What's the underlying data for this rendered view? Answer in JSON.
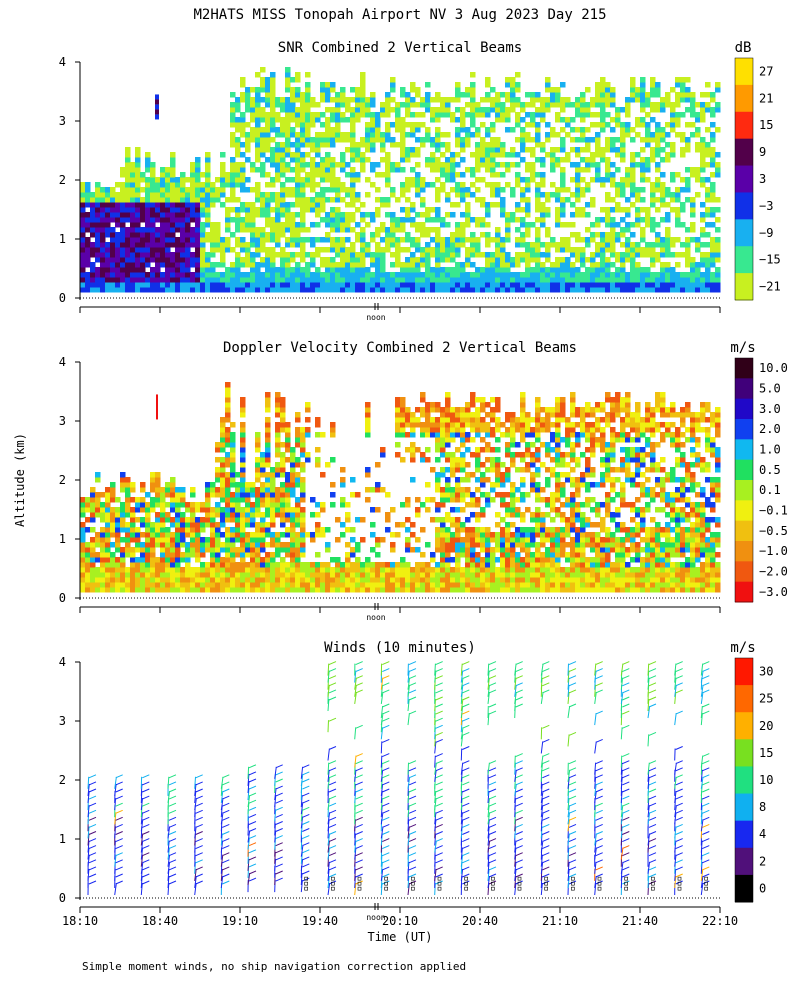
{
  "page_title": "M2HATS MISS Tonopah Airport NV   3 Aug 2023 Day 215",
  "footnote": "Simple moment winds, no ship navigation correction applied",
  "shared_axes": {
    "ylabel": "Altitude (km)",
    "xlabel": "Time (UT)",
    "noon_label": "noon",
    "ylim": [
      0,
      4
    ],
    "yticks": [
      "0",
      "1",
      "2",
      "3",
      "4"
    ],
    "xticks": [
      "18:10",
      "18:40",
      "19:10",
      "19:40",
      "20:10",
      "20:40",
      "21:10",
      "21:40",
      "22:10"
    ],
    "xlim_minutes": [
      1090,
      1330
    ],
    "noon_minutes": 1201
  },
  "chart_data": [
    {
      "type": "heatmap",
      "title": "SNR Combined 2 Vertical Beams",
      "units": "dB",
      "colorbar_labels": [
        "27",
        "21",
        "15",
        "9",
        "3",
        "−3",
        "−9",
        "−15",
        "−21"
      ],
      "colorbar_colors": [
        "#ffe000",
        "#ff9a00",
        "#ff2a10",
        "#52004a",
        "#5a00a8",
        "#1030e8",
        "#18b0f0",
        "#38e890",
        "#c8f020"
      ],
      "xlabel": "Time (UT)",
      "ylabel": "Altitude (km)",
      "ylim": [
        0,
        4
      ]
    },
    {
      "type": "heatmap",
      "title": "Doppler Velocity Combined 2 Vertical Beams",
      "units": "m/s",
      "colorbar_labels": [
        "10.0",
        "5.0",
        "3.0",
        "2.0",
        "1.0",
        "0.5",
        "0.1",
        "−0.1",
        "−0.5",
        "−1.0",
        "−2.0",
        "−3.0"
      ],
      "colorbar_colors": [
        "#300018",
        "#40007a",
        "#2008c8",
        "#1040f0",
        "#10b8f0",
        "#20e060",
        "#a8f020",
        "#f0f010",
        "#f0c010",
        "#f09010",
        "#f05810",
        "#f01010"
      ],
      "xlabel": "Time (UT)",
      "ylabel": "Altitude (km)",
      "ylim": [
        0,
        4
      ]
    },
    {
      "type": "scatter",
      "title": "Winds (10 minutes)",
      "units": "m/s",
      "colorbar_labels": [
        "30",
        "25",
        "20",
        "15",
        "10",
        "8",
        "4",
        "2",
        "0"
      ],
      "colorbar_colors": [
        "#ff1800",
        "#ff6800",
        "#ffb000",
        "#78e020",
        "#20e080",
        "#10b0f0",
        "#1828f0",
        "#50107a",
        "#000000"
      ],
      "xlabel": "Time (UT)",
      "ylabel": "Altitude (km)",
      "ylim": [
        0,
        4
      ]
    }
  ]
}
